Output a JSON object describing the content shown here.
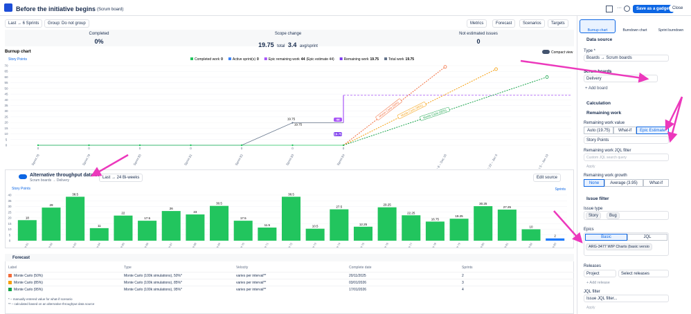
{
  "header": {
    "title": "Before the initiative begins",
    "board": "(Scrum board)",
    "save": "Save as a gadget",
    "close": "Close"
  },
  "toolbar": {
    "range": "Last → 6 Sprints",
    "group": "Group: Do not group",
    "menus": [
      "Metrics",
      "Forecast",
      "Scenarios",
      "Targets"
    ]
  },
  "stats": [
    {
      "label": "Completed",
      "value": "0%"
    },
    {
      "label": "Scope change",
      "value": "19.75",
      "unit": "total",
      "extra": "3.4",
      "extra_unit": "avg/sprint"
    },
    {
      "label": "Not estimated issues",
      "value": "0"
    }
  ],
  "burnup": {
    "title": "Burnup chart",
    "compact": "Compact view",
    "y_label": "Story Points",
    "legend": [
      {
        "name": "Completed work",
        "value": 0,
        "color": "#22c55e"
      },
      {
        "name": "Active sprint(s)",
        "value": 0,
        "color": "#3b82f6"
      },
      {
        "name": "Epic remaining work",
        "value": 44,
        "extra": "(Epic estimate 44)",
        "color": "#a855f7"
      },
      {
        "name": "Remaining work",
        "value": 19.75,
        "color": "#7c3aed"
      },
      {
        "name": "Total work",
        "value": 19.75,
        "color": "#64748b"
      }
    ],
    "categories": [
      "Sprint 78",
      "Sprint 79",
      "Sprint 80",
      "Sprint 81",
      "Sprint 82",
      "Sprint 83",
      "Sprint 84",
      null,
      "Dec 8 – Dec 16",
      "Dec 22 – Jan 5",
      "Jan 5 – Jan 19"
    ],
    "ylim": [
      0,
      70
    ],
    "yticks": [
      0,
      5,
      10,
      15,
      20,
      25,
      30,
      35,
      40,
      45,
      50,
      55,
      60,
      65,
      70
    ],
    "completed_work": [
      0,
      0,
      0,
      0,
      0,
      0,
      0
    ],
    "total_work": [
      0,
      0,
      0,
      0,
      0,
      19.75,
      19.75
    ],
    "remaining_work": [
      null,
      null,
      null,
      null,
      null,
      19.75,
      19.75
    ],
    "epic_remaining": 44,
    "forecasts": [
      {
        "name": "Monte Carlo (50%)",
        "color": "#f26b3a",
        "end": 69
      },
      {
        "name": "Monte Carlo (85%)",
        "color": "#f59e0b",
        "end": 67
      },
      {
        "name": "Monte Carlo (95%)",
        "color": "#16a34a",
        "end": 60
      }
    ]
  },
  "throughput": {
    "title": "Alternative throughput data source",
    "source": "Scrum boards → Delivery",
    "range": "Last → 24 Bi-weeks",
    "edit": "Edit source",
    "y_label": "Story Points",
    "x_label": "Sprints",
    "color": "#22c55e",
    "categories": [
      "Sprint 61",
      "Sprint 62",
      "Sprint 63",
      "Sprint 64",
      "Sprint 65",
      "Sprint 66",
      "Sprint 67",
      "Sprint 68",
      "Sprint 69",
      "Sprint 70",
      "Sprint 71",
      "Sprint 72",
      "Sprint 73",
      "Sprint 74",
      "Sprint 75",
      "Sprint 76",
      "Sprint 77",
      "Sprint 78",
      "Sprint 79",
      "Sprint 80",
      "Sprint 81",
      "Sprint 82",
      "Sprint 83"
    ],
    "values": [
      18,
      29,
      38.5,
      11,
      22,
      17.5,
      26,
      23,
      30.5,
      17.5,
      11.5,
      38.5,
      10.5,
      27.5,
      12.25,
      29.25,
      22.25,
      16.75,
      19.25,
      30.25,
      27.25,
      10,
      2
    ],
    "ylim": [
      0,
      40
    ],
    "yticks": [
      0,
      5,
      10,
      15,
      20,
      25,
      30,
      35,
      40
    ]
  },
  "forecast": {
    "title": "Forecast",
    "columns": [
      "Label",
      "Type",
      "Velocity",
      "Complete date",
      "Sprints"
    ],
    "rows": [
      [
        "Monte Carlo (50%)",
        "Monte Carlo (100k simulations), 50%*",
        "varies per interval**",
        "20/11/2025",
        "2"
      ],
      [
        "Monte Carlo (85%)",
        "Monte Carlo (100k simulations), 85%*",
        "varies per interval**",
        "03/01/2026",
        "3"
      ],
      [
        "Monte Carlo (95%)",
        "Monte Carlo (100k simulations), 95%*",
        "varies per interval**",
        "17/01/2026",
        "4"
      ]
    ],
    "notes": [
      "* – manually entered value for what-if scenario",
      "** – calculated based on an alternative throughput data source"
    ]
  },
  "panel": {
    "tabs": [
      "Burnup chart",
      "Burndown chart",
      "Sprint burndown"
    ],
    "data_source": "Data source",
    "type_label": "Type *",
    "type_value": "Boards → Scrum boards",
    "boards_label": "Scrum boards",
    "boards_value": "Delivery",
    "add_board": "+ Add board",
    "calculation": "Calculation",
    "remaining": "Remaining work",
    "value_label": "Remaining work value",
    "value_options": [
      "Auto (19.75)",
      "What-if",
      "Epic Estimate"
    ],
    "unit": "Story Points",
    "jql_label": "Remaining work JQL filter",
    "jql_placeholder": "Custom JQL search query",
    "apply": "Apply",
    "growth_label": "Remaining work growth",
    "growth_options": [
      "None",
      "Average (3.95)",
      "What-if"
    ],
    "issue_filter": "Issue filter",
    "issue_type": "Issue type",
    "types": [
      "Story",
      "Bug"
    ],
    "epics": "Epics",
    "epic_tabs": [
      "Basic",
      "JQL"
    ],
    "epic_value": "ARG-3477 WIP Charts (basic versio",
    "releases": "Releases",
    "project": "Project",
    "select_releases": "Select releases",
    "add_release": "+ Add release",
    "jql_filter": "JQL filter",
    "jql_filter_placeholder": "Issue JQL filter...",
    "apply2": "Apply"
  }
}
